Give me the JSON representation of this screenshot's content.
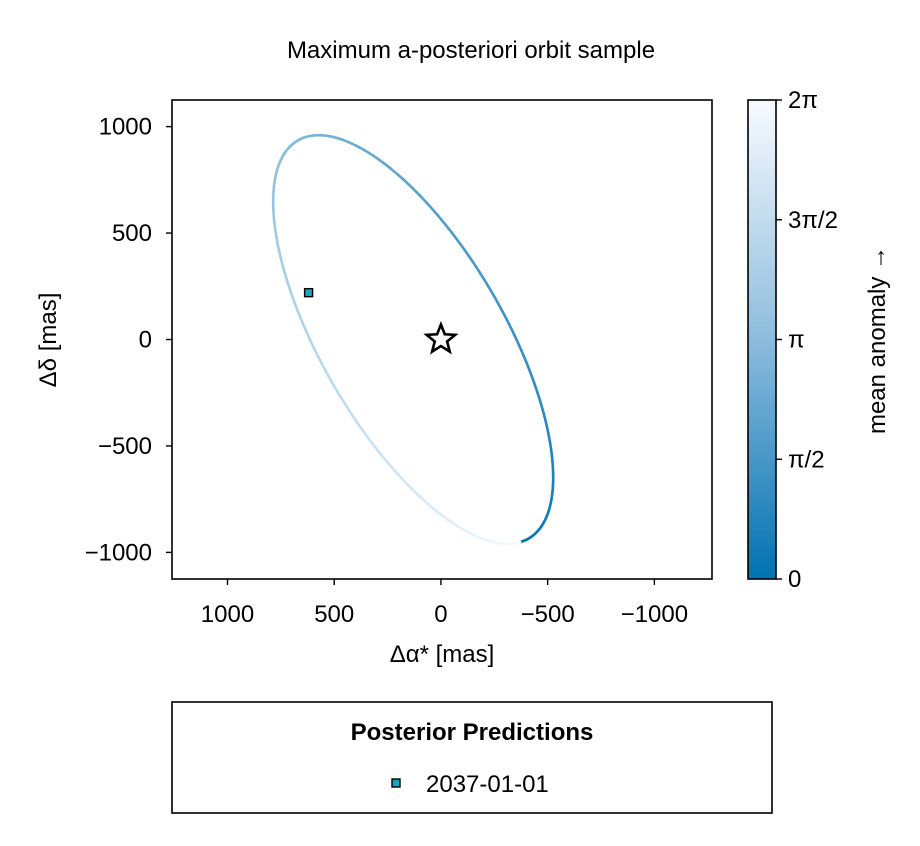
{
  "chart_data": {
    "type": "line",
    "title": "Maximum a-posteriori orbit sample",
    "xlabel": "Δα* [mas]",
    "ylabel": "Δδ [mas]",
    "x_reversed": true,
    "xlim": [
      1260,
      -1270
    ],
    "ylim": [
      -1125,
      1125
    ],
    "xticks": [
      1000,
      500,
      0,
      -500,
      -1000
    ],
    "xtick_labels": [
      "1000",
      "500",
      "0",
      "−500",
      "−1000"
    ],
    "yticks": [
      1000,
      500,
      0,
      -500,
      -1000
    ],
    "ytick_labels": [
      "1000",
      "500",
      "0",
      "−500",
      "−1000"
    ],
    "grid": false,
    "orbit": {
      "ellipse_center": [
        130,
        0
      ],
      "semi_major": 1080,
      "semi_minor": 430,
      "rotation_deg": 30,
      "start_point": [
        -385,
        -1000
      ],
      "color_by": "mean anomaly"
    },
    "star": {
      "x": 0,
      "y": 0,
      "marker": "star"
    },
    "points": [
      {
        "label": "2037-01-01",
        "x": 620,
        "y": 220,
        "marker": "square",
        "color": "#17a4bd"
      }
    ],
    "colorbar": {
      "label": "mean anomaly →",
      "range": [
        0,
        6.2832
      ],
      "ticks": [
        0,
        1.5708,
        3.1416,
        4.7124,
        6.2832
      ],
      "tick_labels": [
        "0",
        "π/2",
        "π",
        "3π/2",
        "2π"
      ],
      "colormap": [
        "#0072b2",
        "#f7fbff"
      ],
      "placement": "right"
    },
    "legend": {
      "title": "Posterior Predictions",
      "placement": "bottom",
      "entries": [
        {
          "label": "2037-01-01",
          "marker": "square",
          "color": "#17a4bd"
        }
      ]
    }
  }
}
